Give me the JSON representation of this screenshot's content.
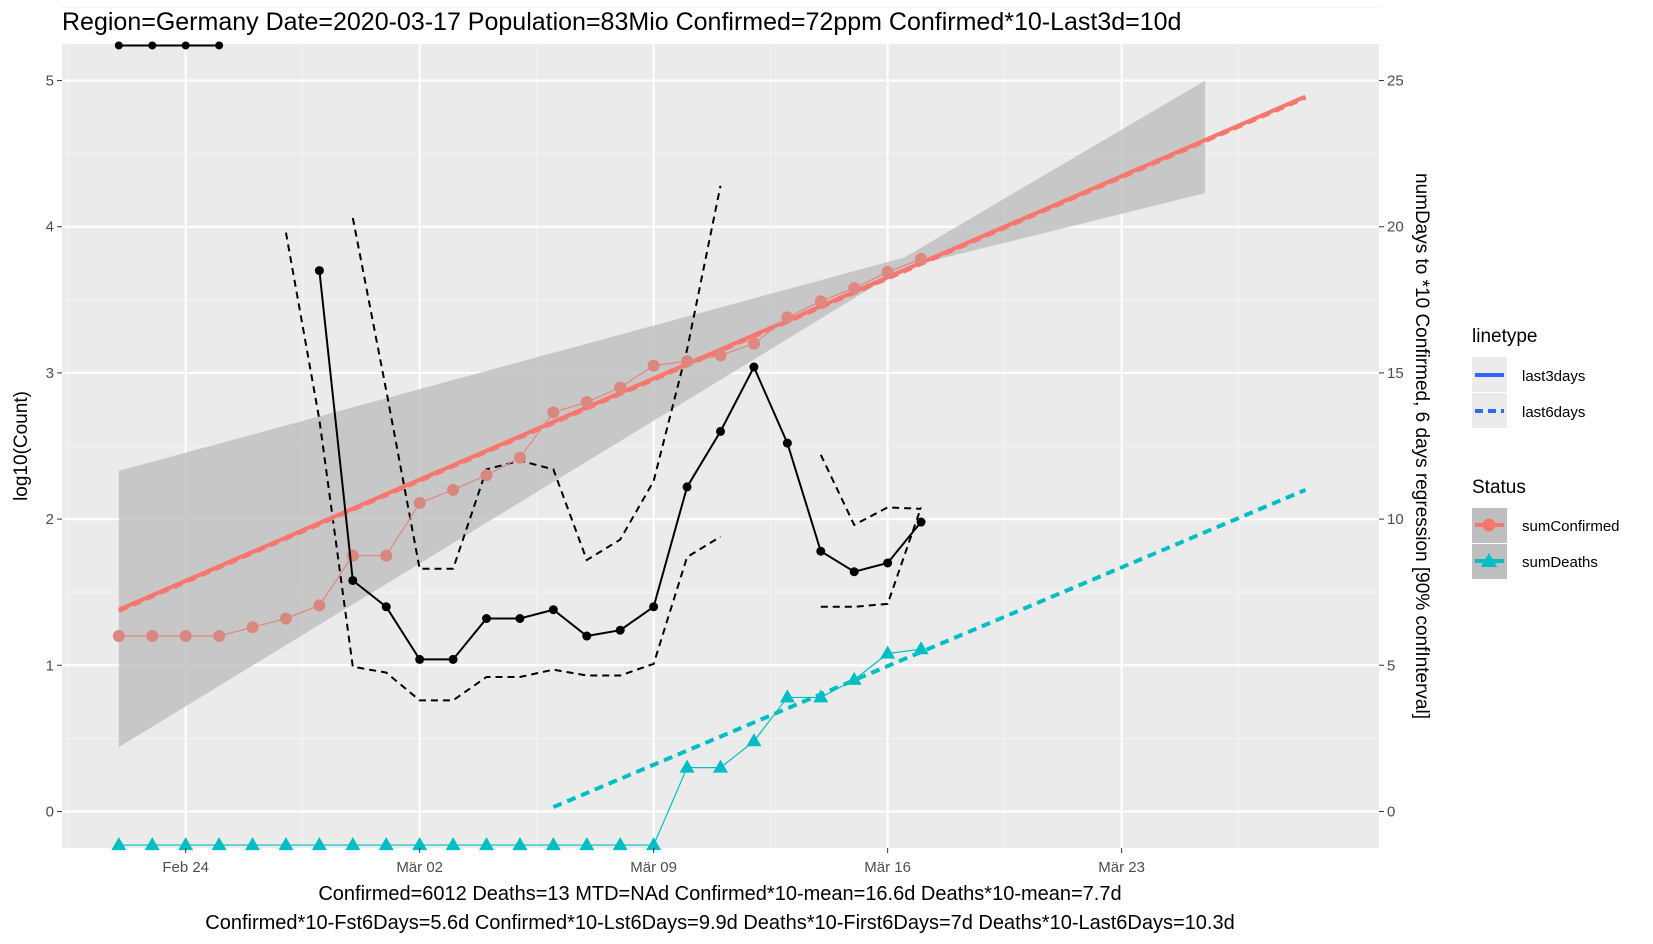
{
  "chart_data": {
    "type": "line",
    "title": "Region=Germany Date=2020-03-17  Population=83Mio Confirmed=72ppm  Confirmed*10-Last3d=10d",
    "ylabel": "log10(Count)",
    "y2label": "numDays to *10 Confirmed, 6 days regression [90% confInterval]",
    "x_tick_labels": [
      "Feb 24",
      "Mär 02",
      "Mär 09",
      "Mär 16",
      "Mär 23"
    ],
    "x_tick_days": [
      2,
      9,
      16,
      23,
      30
    ],
    "y_ticks": [
      0,
      1,
      2,
      3,
      4,
      5
    ],
    "y2_ticks": [
      0,
      5,
      10,
      15,
      20,
      25
    ],
    "ylim": [
      -0.25,
      5.25
    ],
    "xlim": [
      -1.7,
      37.7
    ],
    "x_day_note": "x values are days, day 0 = 2020-02-22",
    "series": [
      {
        "name": "sumConfirmed",
        "color": "#F8766D",
        "x": [
          0,
          1,
          2,
          3,
          4,
          5,
          6,
          7,
          8,
          9,
          10,
          11,
          12,
          13,
          14,
          15,
          16,
          17,
          18,
          19,
          20,
          21,
          22,
          23,
          24
        ],
        "values": [
          1.2,
          1.2,
          1.2,
          1.2,
          1.26,
          1.32,
          1.41,
          1.75,
          1.75,
          2.11,
          2.2,
          2.3,
          2.42,
          2.73,
          2.8,
          2.9,
          3.05,
          3.08,
          3.12,
          3.2,
          3.38,
          3.49,
          3.58,
          3.69,
          3.78
        ]
      },
      {
        "name": "sumDeaths",
        "color": "#00BFC4",
        "x": [
          0,
          1,
          2,
          3,
          4,
          5,
          6,
          7,
          8,
          9,
          10,
          11,
          12,
          13,
          14,
          15,
          16,
          17,
          18,
          19,
          20,
          21,
          22,
          23,
          24
        ],
        "values": [
          -0.23,
          -0.23,
          -0.23,
          -0.23,
          -0.23,
          -0.23,
          -0.23,
          -0.23,
          -0.23,
          -0.23,
          -0.23,
          -0.23,
          -0.23,
          -0.23,
          -0.23,
          -0.23,
          -0.23,
          0.3,
          0.3,
          0.48,
          0.78,
          0.78,
          0.9,
          1.08,
          1.11
        ]
      },
      {
        "name": "numDays to *10 (right axis)",
        "color": "#000000",
        "x": [
          6,
          7,
          8,
          9,
          10,
          11,
          12,
          13,
          14,
          15,
          16,
          17,
          18,
          19,
          20,
          21,
          22,
          23,
          24
        ],
        "values_right_axis": [
          18.5,
          7.9,
          7.0,
          5.2,
          5.2,
          6.6,
          6.6,
          6.9,
          6.0,
          6.2,
          7.0,
          11.1,
          13.0,
          15.2,
          12.6,
          8.9,
          8.2,
          8.5,
          9.9
        ]
      },
      {
        "name": "numDays to *10 upper CI (right axis)",
        "color": "#000000",
        "segments": [
          {
            "x": [
              5,
              6,
              7,
              8,
              9,
              10,
              11,
              12,
              13,
              14,
              15,
              16,
              17,
              18
            ],
            "values_right_axis": [
              19.8,
              13.4,
              4.95,
              4.75,
              3.8,
              3.8,
              4.6,
              4.6,
              4.85,
              4.65,
              4.65,
              5.05,
              8.7,
              9.4
            ]
          },
          {
            "x": [
              21,
              22,
              23,
              24
            ],
            "values_right_axis": [
              7.0,
              7.0,
              7.1,
              10.4
            ]
          }
        ]
      },
      {
        "name": "numDays to *10 lower CI (right axis)",
        "color": "#000000",
        "segments": [
          {
            "x": [
              7,
              8,
              9,
              10,
              11,
              12,
              13,
              14,
              15,
              16,
              17,
              18
            ],
            "values_right_axis": [
              20.3,
              14.4,
              8.3,
              8.3,
              11.7,
              12.0,
              11.7,
              8.6,
              9.3,
              11.3,
              15.8,
              21.4
            ]
          },
          {
            "x": [
              21,
              22,
              23,
              24
            ],
            "values_right_axis": [
              12.2,
              9.8,
              10.4,
              10.35
            ]
          }
        ]
      },
      {
        "name": "sumConfirmed regression last3days",
        "color": "#F8766D",
        "x": [
          0,
          35.5
        ],
        "values": [
          1.38,
          4.89
        ]
      },
      {
        "name": "sumDeaths regression last6days",
        "color": "#00BFC4",
        "x": [
          13,
          35.5
        ],
        "values": [
          0.03,
          2.2
        ]
      }
    ],
    "confidence_band": {
      "color": "#BEBEBE",
      "x": [
        0,
        23.5,
        32.5
      ],
      "upper": [
        2.33,
        3.79,
        5.0
      ],
      "lower": [
        0.44,
        3.72,
        4.23
      ]
    },
    "top_clipped_segment": {
      "x": [
        0,
        1,
        2,
        3
      ],
      "values": [
        5.24,
        5.24,
        5.24,
        5.24
      ]
    },
    "legend": {
      "placement": "right",
      "linetype": {
        "title": "linetype",
        "items": [
          {
            "label": "last3days",
            "color": "#3366FF",
            "style": "solid"
          },
          {
            "label": "last6days",
            "color": "#3366FF",
            "style": "dashed"
          }
        ]
      },
      "status": {
        "title": "Status",
        "items": [
          {
            "label": "sumConfirmed",
            "color": "#F8766D",
            "marker": "circle"
          },
          {
            "label": "sumDeaths",
            "color": "#00BFC4",
            "marker": "triangle"
          }
        ]
      }
    },
    "caption_line1": "Confirmed=6012 Deaths=13  MTD=NAd   Confirmed*10-mean=16.6d  Deaths*10-mean=7.7d",
    "caption_line2": "Confirmed*10-Fst6Days=5.6d  Confirmed*10-Lst6Days=9.9d    Deaths*10-First6Days=7d  Deaths*10-Last6Days=10.3d",
    "grid": true
  }
}
